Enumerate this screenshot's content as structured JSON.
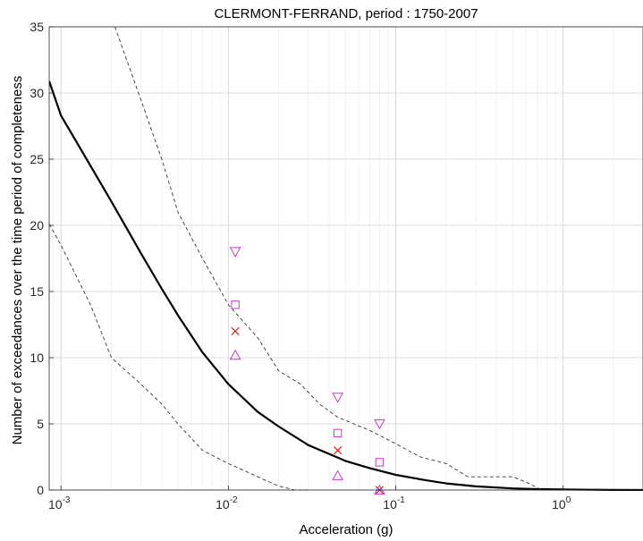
{
  "chart_data": {
    "type": "line",
    "title": "CLERMONT-FERRAND, period : 1750-2007",
    "xlabel": "Acceleration (g)",
    "ylabel": "Number of exceedances over the time period of completeness",
    "xscale": "log",
    "xlim": [
      0.00085,
      3.0
    ],
    "ylim": [
      0,
      35
    ],
    "grid": true,
    "x_ticks": [
      {
        "value": 0.001,
        "base": "10",
        "exp": "-3"
      },
      {
        "value": 0.01,
        "base": "10",
        "exp": "-2"
      },
      {
        "value": 0.1,
        "base": "10",
        "exp": "-1"
      },
      {
        "value": 1,
        "base": "10",
        "exp": "0"
      }
    ],
    "y_ticks": [
      0,
      5,
      10,
      15,
      20,
      25,
      30,
      35
    ],
    "series": [
      {
        "style": "solid-black",
        "x": [
          0.00085,
          0.001,
          0.0015,
          0.002,
          0.003,
          0.004,
          0.005,
          0.007,
          0.01,
          0.015,
          0.02,
          0.03,
          0.05,
          0.07,
          0.1,
          0.15,
          0.2,
          0.3,
          0.5,
          0.7,
          1,
          1.5,
          2,
          3
        ],
        "y": [
          30.9,
          28.3,
          24.5,
          21.8,
          17.9,
          15.2,
          13.2,
          10.4,
          8.0,
          5.9,
          4.8,
          3.4,
          2.2,
          1.65,
          1.15,
          0.75,
          0.5,
          0.28,
          0.12,
          0.07,
          0.04,
          0.02,
          0.01,
          0.0
        ]
      },
      {
        "style": "dashed-upper",
        "x": [
          0.0021,
          0.003,
          0.004,
          0.005,
          0.007,
          0.01,
          0.015,
          0.02,
          0.027,
          0.035,
          0.045,
          0.07,
          0.1,
          0.14,
          0.2,
          0.27,
          0.35,
          0.5,
          0.6,
          0.75,
          0.9
        ],
        "y": [
          35,
          29.5,
          25.0,
          21.0,
          17.5,
          14.0,
          11.5,
          9.0,
          8.0,
          6.5,
          5.5,
          4.5,
          3.5,
          2.5,
          2.0,
          1.0,
          1.0,
          1.0,
          0.6,
          0.0,
          0.0
        ]
      },
      {
        "style": "dashed-lower",
        "x": [
          0.00085,
          0.001,
          0.0015,
          0.002,
          0.003,
          0.004,
          0.005,
          0.007,
          0.01,
          0.015,
          0.02,
          0.025,
          0.03
        ],
        "y": [
          20.1,
          18.5,
          14.0,
          10.0,
          8.0,
          6.5,
          5.0,
          3.0,
          2.0,
          1.0,
          0.3,
          0.0,
          0.0
        ]
      }
    ],
    "markers": [
      {
        "symbol": "triangle-down",
        "color": "#cc33cc",
        "points": [
          {
            "x": 0.011,
            "y": 18.0
          },
          {
            "x": 0.045,
            "y": 7.0
          },
          {
            "x": 0.08,
            "y": 5.0
          }
        ]
      },
      {
        "symbol": "square",
        "color": "#cc33cc",
        "points": [
          {
            "x": 0.011,
            "y": 14.0
          },
          {
            "x": 0.045,
            "y": 4.3
          },
          {
            "x": 0.08,
            "y": 2.1
          }
        ]
      },
      {
        "symbol": "cross",
        "color": "#cc2222",
        "points": [
          {
            "x": 0.011,
            "y": 12.0
          },
          {
            "x": 0.045,
            "y": 3.0
          },
          {
            "x": 0.08,
            "y": 0.0
          }
        ]
      },
      {
        "symbol": "triangle-up",
        "color": "#cc33cc",
        "points": [
          {
            "x": 0.011,
            "y": 10.2
          },
          {
            "x": 0.045,
            "y": 1.1
          },
          {
            "x": 0.08,
            "y": 0.0
          }
        ]
      }
    ]
  }
}
